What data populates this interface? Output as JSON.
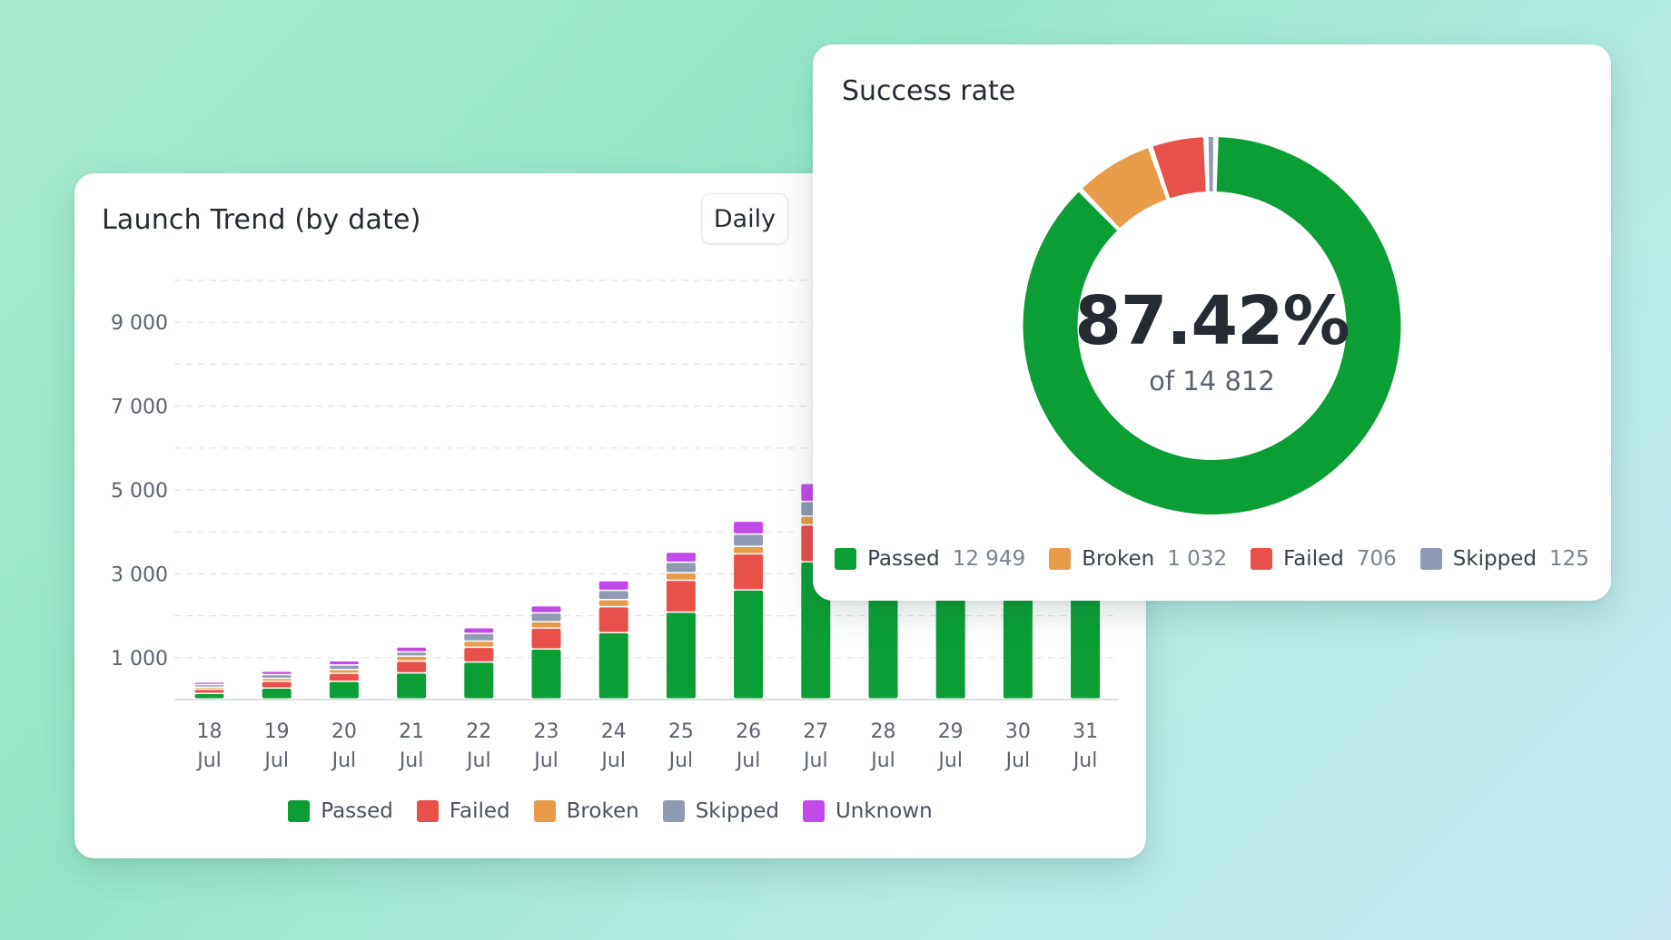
{
  "colors": {
    "passed": "#0a9e35",
    "failed": "#e8504a",
    "broken": "#e89b48",
    "skipped": "#8f9bb3",
    "unknown": "#c24ae8"
  },
  "trend": {
    "title": "Launch Trend (by date)",
    "period_button": "Daily",
    "legend": [
      {
        "key": "passed",
        "label": "Passed"
      },
      {
        "key": "failed",
        "label": "Failed"
      },
      {
        "key": "broken",
        "label": "Broken"
      },
      {
        "key": "skipped",
        "label": "Skipped"
      },
      {
        "key": "unknown",
        "label": "Unknown"
      }
    ]
  },
  "chart_data": [
    {
      "type": "bar",
      "stacked": true,
      "title": "Launch Trend (by date)",
      "y_ticks": [
        "9 000",
        "7 000",
        "5 000",
        "3 000",
        "1 000"
      ],
      "y_tick_values": [
        9000,
        7000,
        5000,
        3000,
        1000
      ],
      "ylim": [
        0,
        10000
      ],
      "grid": true,
      "legend_position": "bottom",
      "categories": [
        [
          "18",
          "Jul"
        ],
        [
          "19",
          "Jul"
        ],
        [
          "20",
          "Jul"
        ],
        [
          "21",
          "Jul"
        ],
        [
          "22",
          "Jul"
        ],
        [
          "23",
          "Jul"
        ],
        [
          "24",
          "Jul"
        ],
        [
          "25",
          "Jul"
        ],
        [
          "26",
          "Jul"
        ],
        [
          "27",
          "Jul"
        ],
        [
          "28",
          "Jul"
        ],
        [
          "29",
          "Jul"
        ],
        [
          "30",
          "Jul"
        ],
        [
          "31",
          "Jul"
        ]
      ],
      "series": [
        {
          "name": "Passed",
          "key": "passed",
          "values": [
            130,
            260,
            420,
            620,
            880,
            1190,
            1580,
            2070,
            2600,
            3270,
            3300,
            3350,
            3400,
            3450
          ]
        },
        {
          "name": "Failed",
          "key": "failed",
          "values": [
            100,
            160,
            190,
            280,
            350,
            500,
            620,
            760,
            860,
            880,
            0,
            0,
            0,
            0
          ]
        },
        {
          "name": "Broken",
          "key": "broken",
          "values": [
            50,
            70,
            90,
            120,
            150,
            150,
            170,
            180,
            180,
            210,
            0,
            0,
            0,
            0
          ]
        },
        {
          "name": "Skipped",
          "key": "skipped",
          "values": [
            60,
            90,
            110,
            100,
            180,
            210,
            220,
            250,
            290,
            350,
            0,
            0,
            0,
            0
          ]
        },
        {
          "name": "Unknown",
          "key": "unknown",
          "values": [
            60,
            80,
            100,
            120,
            140,
            170,
            230,
            240,
            310,
            430,
            0,
            0,
            0,
            0
          ]
        }
      ]
    },
    {
      "type": "pie",
      "donut": true,
      "title": "Success rate",
      "center_value": "87.42%",
      "center_label": "of 14 812",
      "legend_position": "bottom",
      "slices": [
        {
          "name": "Passed",
          "key": "passed",
          "value": 12949,
          "label": "12 949"
        },
        {
          "name": "Broken",
          "key": "broken",
          "value": 1032,
          "label": "1 032"
        },
        {
          "name": "Failed",
          "key": "failed",
          "value": 706,
          "label": "706"
        },
        {
          "name": "Skipped",
          "key": "skipped",
          "value": 125,
          "label": "125"
        }
      ]
    }
  ],
  "success": {
    "title": "Success rate",
    "percent": "87.42%",
    "total_label": "of 14 812"
  }
}
